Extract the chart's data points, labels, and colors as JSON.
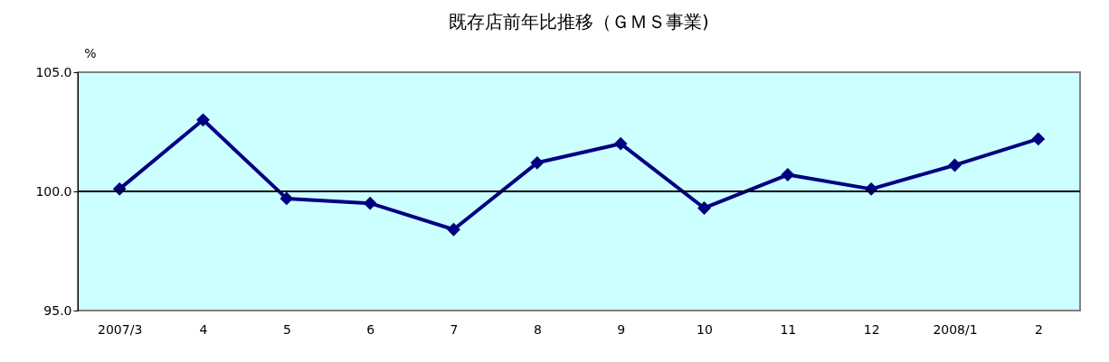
{
  "chart_data": {
    "type": "line",
    "title": "既存店前年比推移（ＧＭＳ事業)",
    "ylabel": "%",
    "categories": [
      "2007/3",
      "4",
      "5",
      "6",
      "7",
      "8",
      "9",
      "10",
      "11",
      "12",
      "2008/1",
      "2"
    ],
    "series": [
      {
        "color": "#000080",
        "values": [
          100.1,
          103.0,
          99.7,
          99.5,
          98.4,
          101.2,
          102.0,
          99.3,
          100.7,
          100.1,
          101.1,
          102.2
        ]
      }
    ],
    "ylim": [
      95,
      105
    ],
    "yticks": [
      {
        "value": 95,
        "label": "95.0"
      },
      {
        "value": 100,
        "label": "100.0"
      },
      {
        "value": 105,
        "label": "105.0"
      }
    ],
    "ref_lines": [
      {
        "axis": "y",
        "value": 100,
        "color": "#000000"
      }
    ],
    "grid": false,
    "marker": "diamond",
    "line_style": "solid"
  }
}
